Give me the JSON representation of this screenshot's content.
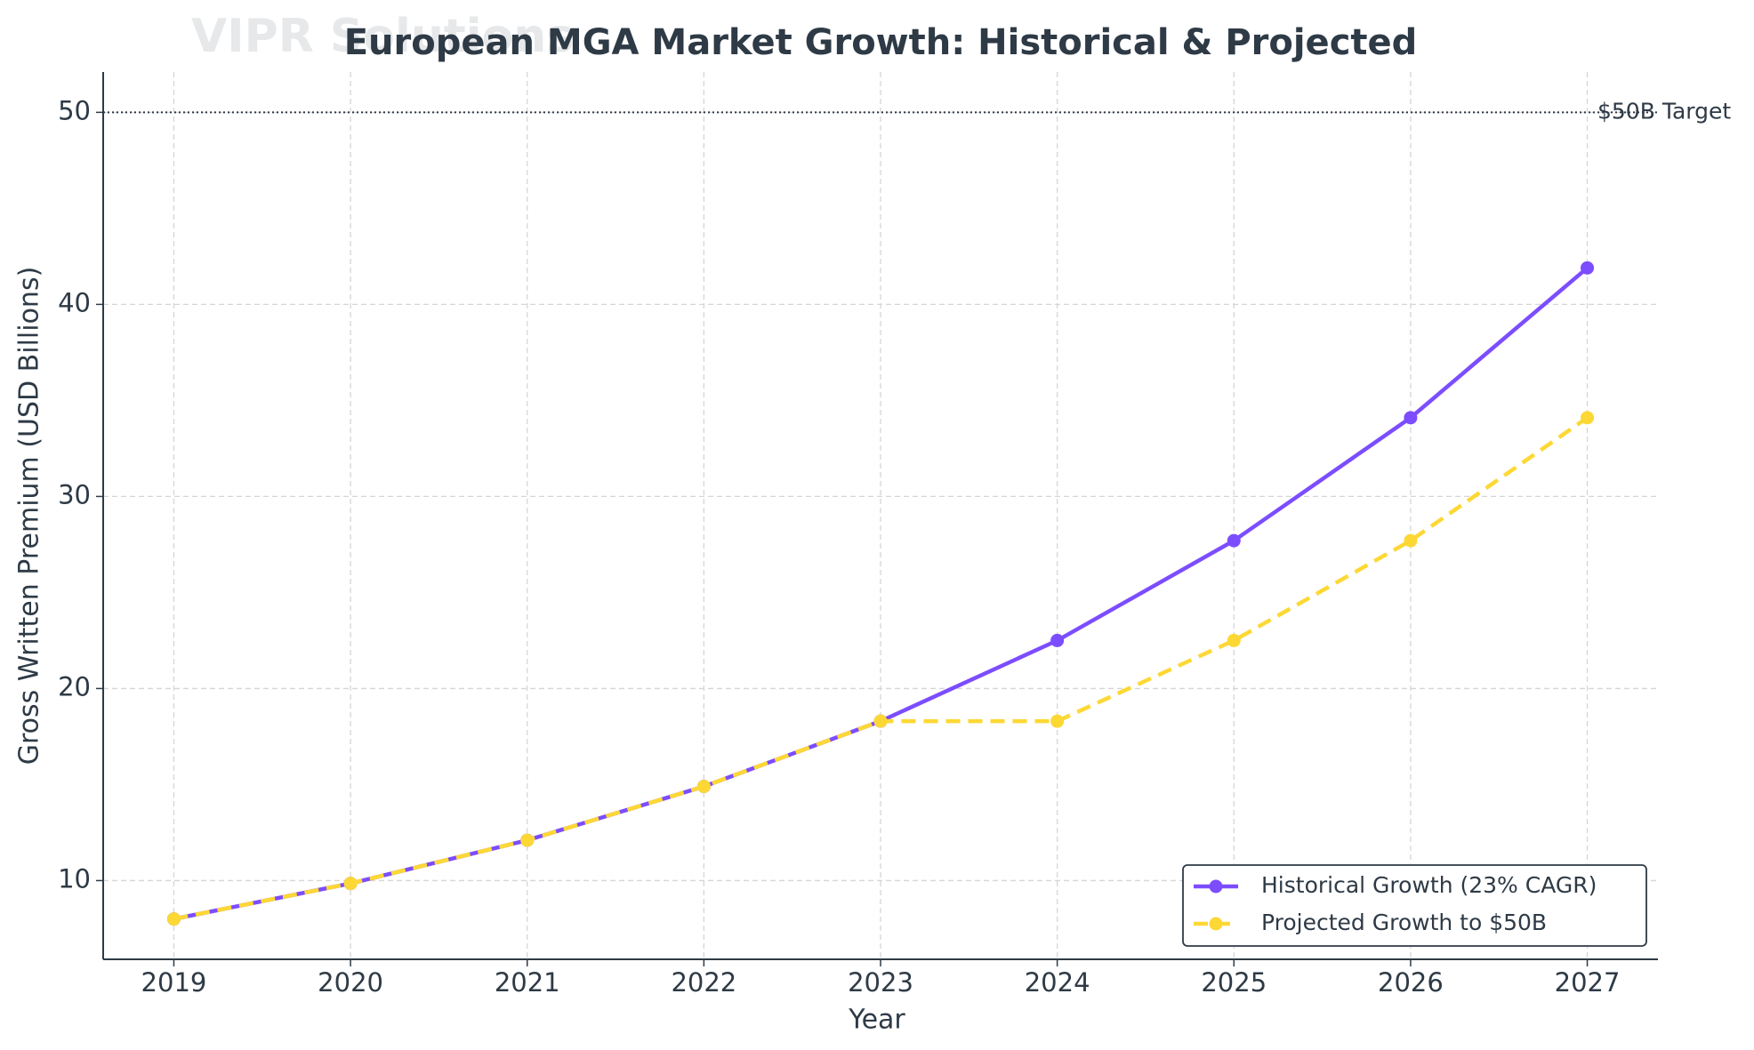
{
  "chart_data": {
    "type": "line",
    "title": "European MGA Market Growth: Historical & Projected",
    "watermark": "VIPR Solutions",
    "xlabel": "Year",
    "ylabel": "Gross Written Premium (USD Billions)",
    "x": [
      2019,
      2020,
      2021,
      2022,
      2023,
      2024,
      2025,
      2026,
      2027
    ],
    "series": [
      {
        "name": "Historical Growth (23% CAGR)",
        "color": "#7c4dff",
        "dash": "solid",
        "values": [
          8.0,
          9.85,
          12.1,
          14.9,
          18.3,
          22.5,
          27.7,
          34.1,
          41.9
        ]
      },
      {
        "name": "Projected Growth to $50B",
        "color": "#fdd835",
        "dash": "dashed",
        "values": [
          8.0,
          9.85,
          12.1,
          14.9,
          18.3,
          18.3,
          22.5,
          27.7,
          34.1
        ]
      }
    ],
    "target": {
      "value": 50,
      "label": "$50B Target"
    },
    "xlim": [
      2018.6,
      2027.4
    ],
    "xticks": [
      2019,
      2020,
      2021,
      2022,
      2023,
      2024,
      2025,
      2026,
      2027
    ],
    "ylim": [
      5.9,
      52.1
    ],
    "yticks": [
      10,
      20,
      30,
      40,
      50
    ],
    "grid": true,
    "legend": "lower right"
  }
}
